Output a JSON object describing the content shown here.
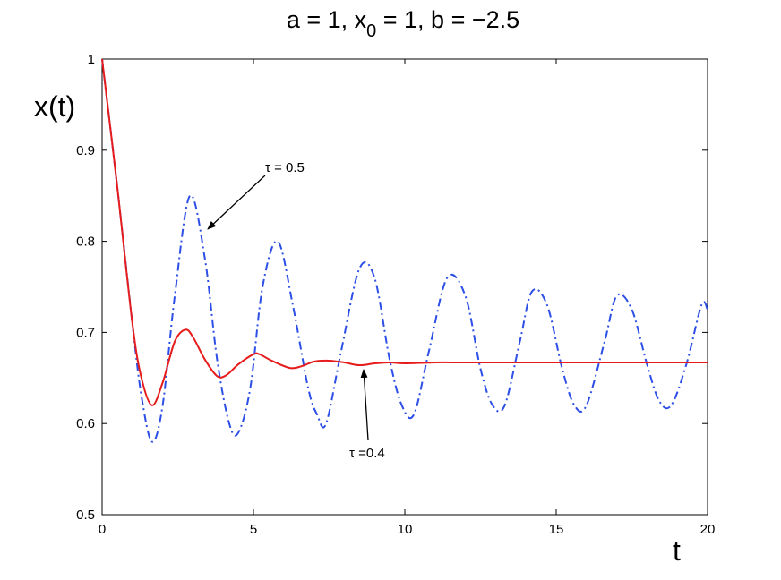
{
  "chart_data": {
    "type": "line",
    "title": {
      "prefix": "a = 1, x",
      "subscript": "0",
      "suffix": " = 1, b = −2.5"
    },
    "xlabel": "t",
    "ylabel": "x(t)",
    "xlim": [
      0,
      20
    ],
    "ylim": [
      0.5,
      1.0
    ],
    "xticks": [
      0,
      5,
      10,
      15,
      20
    ],
    "xtick_labels": [
      "0",
      "5",
      "10",
      "15",
      "20"
    ],
    "yticks": [
      0.5,
      0.6,
      0.7,
      0.8,
      0.9,
      1.0
    ],
    "ytick_labels": [
      "0.5",
      "0.6",
      "0.7",
      "0.8",
      "0.9",
      "1"
    ],
    "grid": false,
    "series": [
      {
        "color": "#2d4fe6",
        "line_style": "dash-dot",
        "x": [
          0,
          0.5,
          1.0,
          1.3,
          1.65,
          2.0,
          2.4,
          2.9,
          3.4,
          3.8,
          4.2,
          4.5,
          4.9,
          5.3,
          5.8,
          6.3,
          6.8,
          7.1,
          7.4,
          7.9,
          8.5,
          9.0,
          9.5,
          9.9,
          10.3,
          10.8,
          11.4,
          12.0,
          12.5,
          12.9,
          13.3,
          13.8,
          14.2,
          14.7,
          15.2,
          15.6,
          16.0,
          16.6,
          17.0,
          17.5,
          18.0,
          18.4,
          18.8,
          19.3,
          19.8,
          20.0
        ],
        "y": [
          1.0,
          0.86,
          0.71,
          0.63,
          0.58,
          0.62,
          0.74,
          0.85,
          0.78,
          0.67,
          0.6,
          0.59,
          0.64,
          0.75,
          0.8,
          0.73,
          0.64,
          0.61,
          0.6,
          0.68,
          0.77,
          0.76,
          0.67,
          0.62,
          0.61,
          0.68,
          0.76,
          0.74,
          0.66,
          0.62,
          0.62,
          0.69,
          0.745,
          0.73,
          0.66,
          0.62,
          0.62,
          0.69,
          0.74,
          0.725,
          0.665,
          0.625,
          0.62,
          0.665,
          0.73,
          0.725
        ]
      },
      {
        "color": "#e61c1c",
        "line_style": "solid",
        "x": [
          0,
          0.5,
          1.0,
          1.3,
          1.65,
          2.0,
          2.4,
          2.75,
          3.0,
          3.4,
          3.8,
          4.1,
          4.5,
          5.0,
          5.2,
          5.6,
          6.2,
          6.6,
          7.0,
          7.5,
          8.0,
          8.5,
          9.0,
          9.5,
          10.0,
          11.0,
          12.0,
          14.0,
          16.0,
          18.0,
          20.0
        ],
        "y": [
          1.0,
          0.86,
          0.71,
          0.65,
          0.62,
          0.645,
          0.69,
          0.703,
          0.695,
          0.67,
          0.652,
          0.653,
          0.665,
          0.676,
          0.676,
          0.669,
          0.661,
          0.663,
          0.668,
          0.669,
          0.667,
          0.664,
          0.666,
          0.667,
          0.666,
          0.667,
          0.667,
          0.667,
          0.667,
          0.667,
          0.667
        ]
      }
    ],
    "annotations": [
      {
        "text": "τ = 0.5",
        "points_to": [
          3.4,
          0.81
        ]
      },
      {
        "text": "τ =0.4",
        "points_to": [
          8.7,
          0.664
        ]
      }
    ]
  }
}
